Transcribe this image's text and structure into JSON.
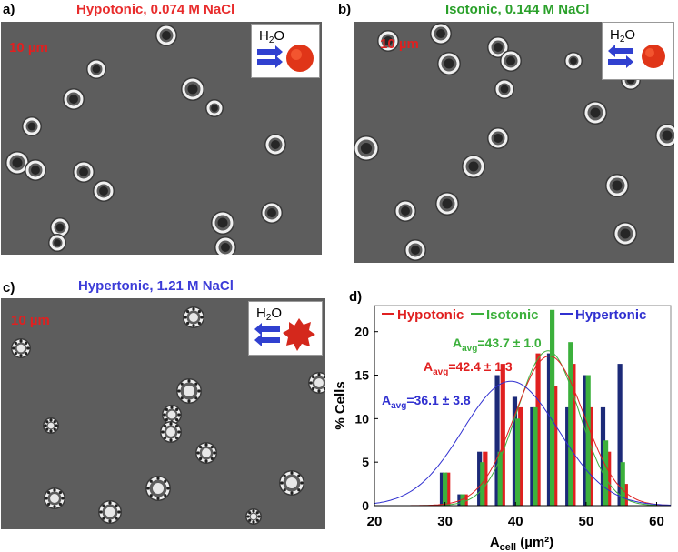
{
  "panels": [
    {
      "label": "a)",
      "title": "Hypotonic, 0.074 M NaCl",
      "title_color": "#e82c2c",
      "scale": "10 µm",
      "inset_label": "H2O",
      "inset_cell": "swollen-cell-icon"
    },
    {
      "label": "b)",
      "title": "Isotonic, 0.144 M NaCl",
      "title_color": "#2aa02a",
      "scale": "10 µm",
      "inset_label": "H2O",
      "inset_cell": "normal-cell-icon"
    },
    {
      "label": "c)",
      "title": "Hypertonic, 1.21 M NaCl",
      "title_color": "#3c3cd8",
      "scale": "10 µm",
      "inset_label": "H2O",
      "inset_cell": "shrunken-cell-icon"
    }
  ],
  "colors": {
    "hypotonic": "#e02020",
    "isotonic": "#3cb03c",
    "hypertonic": "#1c2a78",
    "hyper_fit": "#2020e0"
  },
  "chart_data": {
    "panel_label": "d)",
    "type": "bar",
    "xlabel_main": "A",
    "xlabel_sub": "cell",
    "xlabel_unit": " (µm²)",
    "ylabel": "% Cells",
    "xlim": [
      20,
      62
    ],
    "ylim": [
      0,
      23
    ],
    "xticks": [
      20,
      30,
      40,
      50,
      60
    ],
    "yticks": [
      0,
      5,
      10,
      15,
      20
    ],
    "legend": [
      {
        "name": "Hypotonic",
        "color": "#e02020"
      },
      {
        "name": "Isotonic",
        "color": "#3cb03c"
      },
      {
        "name": "Hypertonic",
        "color": "#3030d0"
      }
    ],
    "annotations": [
      {
        "prefix": "A",
        "sub": "avg",
        "value": "=43.7 ± 1.0",
        "color": "#3cb03c"
      },
      {
        "prefix": "A",
        "sub": "avg",
        "value": "=42.4 ± 1.3",
        "color": "#e02020"
      },
      {
        "prefix": "A",
        "sub": "avg",
        "value": "=36.1 ± 3.8",
        "color": "#3030d0"
      }
    ],
    "series": [
      {
        "name": "Hypertonic",
        "color": "#1c2a78",
        "x": [
          29.6,
          32.1,
          34.9,
          37.4,
          39.9,
          42.4,
          44.8,
          47.4,
          49.9,
          52.4,
          54.8
        ],
        "values": [
          3.8,
          1.3,
          6.2,
          15.0,
          12.5,
          11.3,
          17.5,
          11.3,
          15.0,
          11.3,
          16.3
        ]
      },
      {
        "name": "Hypotonic",
        "color": "#e02020",
        "x": [
          30.4,
          32.9,
          35.7,
          38.2,
          40.7,
          43.2,
          45.6,
          48.2,
          50.7,
          53.2,
          55.6
        ],
        "values": [
          3.8,
          1.3,
          6.2,
          16.3,
          11.3,
          17.5,
          13.8,
          16.3,
          11.3,
          6.2,
          2.5
        ]
      },
      {
        "name": "Isotonic",
        "color": "#3cb03c",
        "x": [
          30.0,
          32.5,
          35.3,
          37.8,
          40.3,
          42.8,
          45.2,
          47.8,
          50.3,
          52.8,
          55.2
        ],
        "values": [
          3.8,
          1.3,
          5.0,
          6.2,
          10.0,
          11.3,
          22.5,
          18.8,
          15.0,
          7.5,
          5.0
        ]
      }
    ],
    "fits": [
      {
        "name": "Isotonic",
        "color": "#3cb03c",
        "mean": 44.6,
        "sd": 4.4,
        "peak": 17.8
      },
      {
        "name": "Hypotonic",
        "color": "#e02020",
        "mean": 44.8,
        "sd": 4.9,
        "peak": 17.2
      },
      {
        "name": "Hypertonic",
        "color": "#3030d0",
        "mean": 39.3,
        "sd": 6.8,
        "peak": 14.3
      }
    ]
  }
}
